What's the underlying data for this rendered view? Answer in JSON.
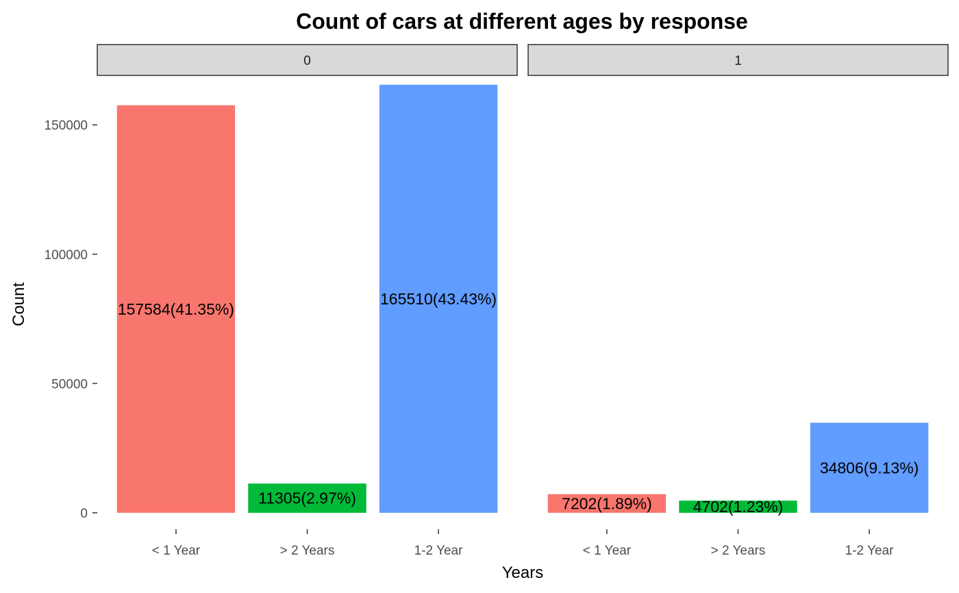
{
  "chart_data": {
    "type": "bar",
    "title": "Count of cars at different ages by response",
    "xlabel": "Years",
    "ylabel": "Count",
    "ylim": [
      0,
      167000
    ],
    "yticks": [
      0,
      50000,
      100000,
      150000
    ],
    "grid": false,
    "legend": "none",
    "categories": [
      "< 1 Year",
      "> 2 Years",
      "1-2 Year"
    ],
    "colors": [
      "#F8766D",
      "#00BA38",
      "#619CFF"
    ],
    "facets": [
      {
        "name": "0",
        "values": [
          157584,
          11305,
          165510
        ],
        "labels": [
          "157584(41.35%)",
          "11305(2.97%)",
          "165510(43.43%)"
        ]
      },
      {
        "name": "1",
        "values": [
          7202,
          4702,
          34806
        ],
        "labels": [
          "7202(1.89%)",
          "4702(1.23%)",
          "34806(9.13%)"
        ]
      }
    ]
  }
}
